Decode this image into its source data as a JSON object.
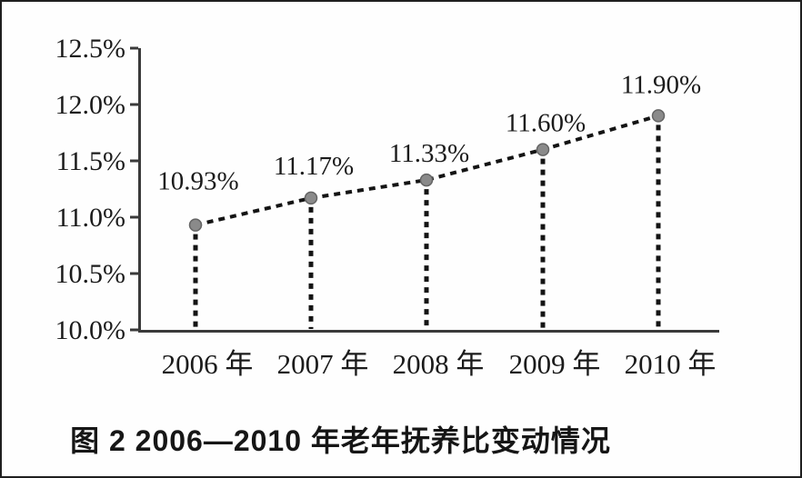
{
  "figure": {
    "caption": "图 2  2006—2010 年老年抚养比变动情况"
  },
  "chart_data": {
    "type": "line",
    "title": "",
    "xlabel": "",
    "ylabel": "",
    "categories": [
      "2006 年",
      "2007 年",
      "2008 年",
      "2009 年",
      "2010 年"
    ],
    "values": [
      10.93,
      11.17,
      11.33,
      11.6,
      11.9
    ],
    "point_labels": [
      "10.93%",
      "11.17%",
      "11.33%",
      "11.60%",
      "11.90%"
    ],
    "ylim": [
      10.0,
      12.5
    ],
    "y_tick_values": [
      12.5,
      12.0,
      11.5,
      11.0,
      10.5,
      10.0
    ],
    "y_tick_labels": [
      "12.5%",
      "12.0%",
      "11.5%",
      "11.0%",
      "10.5%",
      "10.0%"
    ],
    "line_style": "dashed",
    "marker": "circle",
    "grid": false,
    "legend_position": "none",
    "caption": "图 2  2006—2010 年老年抚养比变动情况"
  },
  "colors": {
    "text": "#1b1b1b",
    "axis": "#3a3a3a",
    "line": "#141414",
    "marker_fill": "#8a8a8a",
    "marker_stroke": "#646464",
    "background": "#fefefe",
    "border": "#1f1f1f"
  }
}
